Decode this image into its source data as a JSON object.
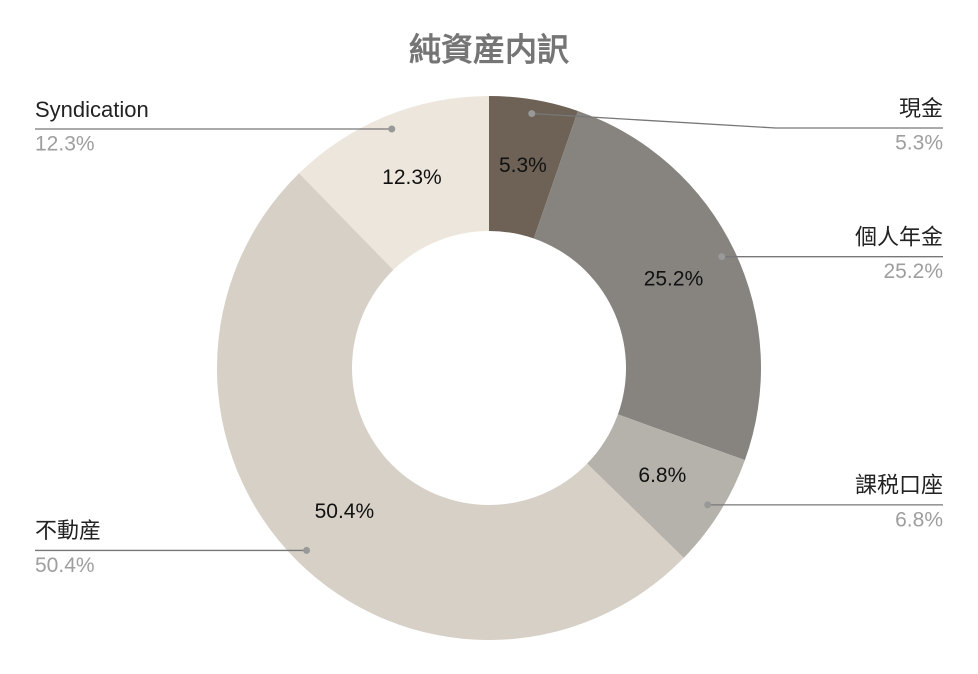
{
  "chart_data": {
    "type": "donut",
    "title": "純資産内訳",
    "categories": [
      "現金",
      "個人年金",
      "課税口座",
      "不動産",
      "Syndication"
    ],
    "values": [
      5.3,
      25.2,
      6.8,
      50.4,
      12.3
    ],
    "value_labels": [
      "5.3%",
      "25.2%",
      "6.8%",
      "50.4%",
      "12.3%"
    ],
    "colors": [
      "#6e6256",
      "#878480",
      "#b5b2ab",
      "#d6d0c6",
      "#ede6dc"
    ]
  }
}
